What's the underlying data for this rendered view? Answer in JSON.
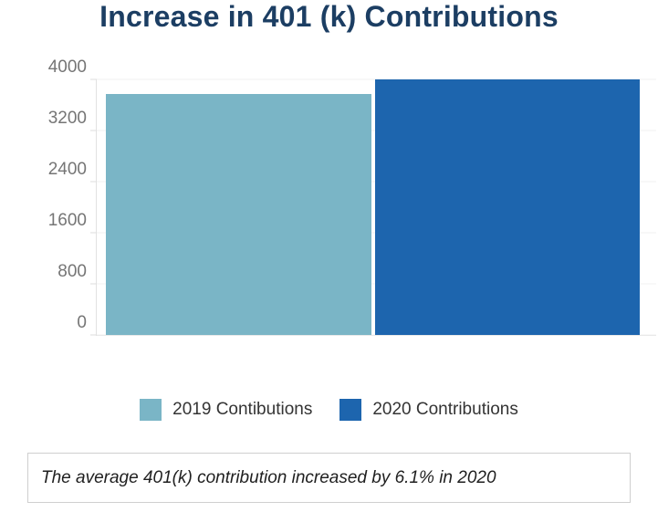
{
  "chart_data": {
    "type": "bar",
    "title": "Increase in 401 (k) Contributions",
    "xlabel": "",
    "ylabel": "",
    "ylim": [
      0,
      4000
    ],
    "yticks": [
      0,
      800,
      1600,
      2400,
      3200,
      4000
    ],
    "grid": true,
    "legend_position": "bottom",
    "categories": [
      "2019",
      "2020"
    ],
    "bars": [
      {
        "label": "2019 Contibutions",
        "value": 3770,
        "color": "#7ab5c6"
      },
      {
        "label": "2020 Contributions",
        "value": 4000,
        "color": "#1d65ae"
      }
    ]
  },
  "caption": {
    "text": "The average 401(k) contribution increased by 6.1% in 2020"
  },
  "colors": {
    "title": "#1c3e63",
    "axis_text": "#757575",
    "gridline": "#f0f0f0",
    "axis_line": "#e2e2e2",
    "caption_border": "#cfcfcf"
  }
}
